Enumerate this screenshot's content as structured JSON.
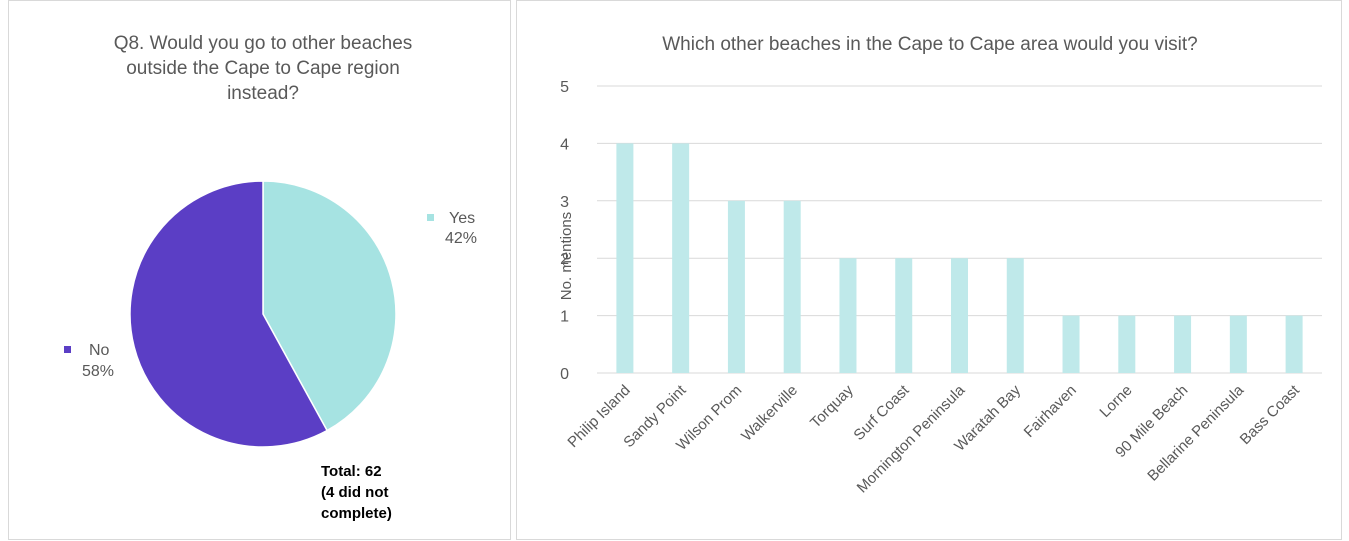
{
  "chart_data": [
    {
      "type": "pie",
      "title": "Q8. Would you go to other beaches outside the Cape to Cape region instead?",
      "title_lines": [
        "Q8. Would you go to other beaches",
        "outside the Cape to Cape region",
        "instead?"
      ],
      "slices": [
        {
          "name": "Yes",
          "value": 42,
          "label": "42%",
          "color": "#a6e3e2"
        },
        {
          "name": "No",
          "value": 58,
          "label": "58%",
          "color": "#5b3ec5"
        }
      ],
      "annotation_lines": [
        "Total: 62",
        "(4 did not",
        "complete)"
      ]
    },
    {
      "type": "bar",
      "title": "Which other beaches in the Cape to Cape area would you visit?",
      "xlabel": "",
      "ylabel": "No. mentions",
      "ylim": [
        0,
        5
      ],
      "yticks": [
        0,
        1,
        2,
        3,
        4,
        5
      ],
      "grid": true,
      "bar_color": "#bfe9ea",
      "categories": [
        "Philip Island",
        "Sandy Point",
        "Wilson Prom",
        "Walkerville",
        "Torquay",
        "Surf Coast",
        "Mornington Peninsula",
        "Waratah Bay",
        "Fairhaven",
        "Lorne",
        "90 Mile Beach",
        "Bellarine Peninsula",
        "Bass Coast"
      ],
      "values": [
        4,
        4,
        3,
        3,
        2,
        2,
        2,
        2,
        1,
        1,
        1,
        1,
        1
      ]
    }
  ]
}
